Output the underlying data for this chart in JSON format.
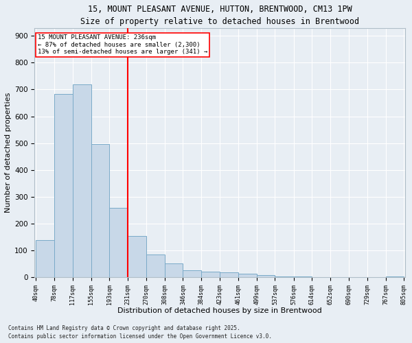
{
  "title_line1": "15, MOUNT PLEASANT AVENUE, HUTTON, BRENTWOOD, CM13 1PW",
  "title_line2": "Size of property relative to detached houses in Brentwood",
  "xlabel": "Distribution of detached houses by size in Brentwood",
  "ylabel": "Number of detached properties",
  "bar_color": "#c8d8e8",
  "bar_edge_color": "#7aaac8",
  "background_color": "#e8eef4",
  "grid_color": "white",
  "annotation_text_line1": "15 MOUNT PLEASANT AVENUE: 236sqm",
  "annotation_text_line2": "← 87% of detached houses are smaller (2,300)",
  "annotation_text_line3": "13% of semi-detached houses are larger (341) →",
  "vline_color": "red",
  "vline_x": 231,
  "bin_edges": [
    40,
    78,
    117,
    155,
    193,
    231,
    270,
    308,
    346,
    384,
    423,
    461,
    499,
    537,
    576,
    614,
    652,
    690,
    729,
    767,
    805
  ],
  "bar_heights": [
    138,
    682,
    718,
    497,
    258,
    155,
    85,
    52,
    25,
    20,
    18,
    12,
    8,
    3,
    2,
    1,
    1,
    0,
    0,
    2
  ],
  "ylim": [
    0,
    930
  ],
  "yticks": [
    0,
    100,
    200,
    300,
    400,
    500,
    600,
    700,
    800,
    900
  ],
  "footnote1": "Contains HM Land Registry data © Crown copyright and database right 2025.",
  "footnote2": "Contains public sector information licensed under the Open Government Licence v3.0."
}
